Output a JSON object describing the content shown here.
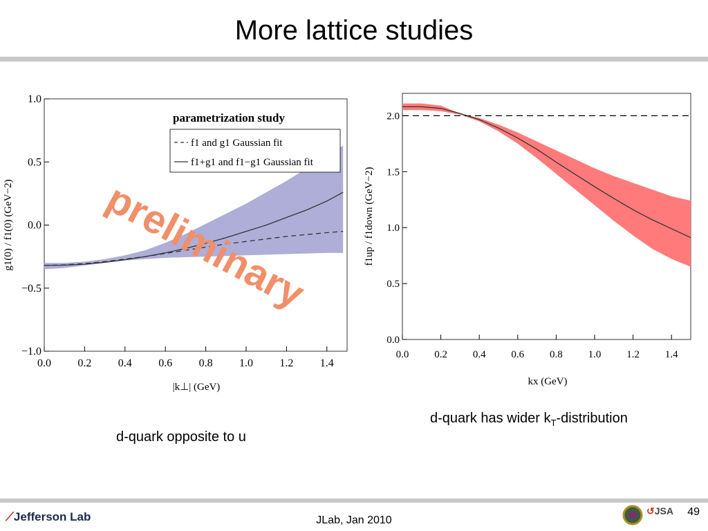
{
  "slide": {
    "title": "More lattice studies",
    "caption_left": "d-quark opposite to u",
    "caption_right_pre": "d-quark has wider k",
    "caption_right_sub": "T",
    "caption_right_post": "-distribution",
    "footer": "JLab, Jan 2010",
    "page_number": "49",
    "logo_text": "Jefferson Lab",
    "logo_right_text": "JSA"
  },
  "chart_data": [
    {
      "type": "line",
      "ylabel": "g1(0) / f1(0)   (GeV−2)",
      "xlabel": "|k⊥| (GeV)",
      "xlim": [
        0.0,
        1.5
      ],
      "ylim": [
        -1.0,
        1.0
      ],
      "x_ticks": [
        "0.0",
        "0.2",
        "0.4",
        "0.6",
        "0.8",
        "1.0",
        "1.2",
        "1.4"
      ],
      "y_ticks": [
        "−1.0",
        "−0.5",
        "0.0",
        "0.5",
        "1.0"
      ],
      "legend_title": "parametrization study",
      "legend_position": "top-right",
      "watermark": "preliminary",
      "band_color": "#aeaed8",
      "x": [
        0.0,
        0.1,
        0.2,
        0.3,
        0.4,
        0.5,
        0.6,
        0.7,
        0.8,
        0.9,
        1.0,
        1.1,
        1.2,
        1.3,
        1.4,
        1.48
      ],
      "band_lower": [
        -0.35,
        -0.34,
        -0.32,
        -0.3,
        -0.28,
        -0.27,
        -0.26,
        -0.255,
        -0.25,
        -0.245,
        -0.24,
        -0.235,
        -0.23,
        -0.225,
        -0.22,
        -0.22
      ],
      "band_upper": [
        -0.3,
        -0.3,
        -0.29,
        -0.27,
        -0.24,
        -0.2,
        -0.14,
        -0.07,
        0.01,
        0.09,
        0.17,
        0.26,
        0.35,
        0.45,
        0.55,
        0.63
      ],
      "series": [
        {
          "name": "f1 and g1 Gaussian fit",
          "style": "dashed",
          "values": [
            -0.32,
            -0.315,
            -0.305,
            -0.29,
            -0.27,
            -0.25,
            -0.225,
            -0.2,
            -0.175,
            -0.15,
            -0.13,
            -0.11,
            -0.09,
            -0.075,
            -0.06,
            -0.05
          ]
        },
        {
          "name": "f1+g1 and f1−g1 Gaussian fit",
          "style": "solid",
          "values": [
            -0.32,
            -0.318,
            -0.31,
            -0.295,
            -0.275,
            -0.25,
            -0.22,
            -0.185,
            -0.145,
            -0.1,
            -0.05,
            0.0,
            0.06,
            0.12,
            0.19,
            0.26
          ]
        }
      ]
    },
    {
      "type": "line",
      "ylabel": "f1up / f1down   (GeV−2)",
      "xlabel": "kx (GeV)",
      "xlim": [
        0.0,
        1.5
      ],
      "ylim": [
        0.0,
        2.2
      ],
      "x_ticks": [
        "0.0",
        "0.2",
        "0.4",
        "0.6",
        "0.8",
        "1.0",
        "1.2",
        "1.4"
      ],
      "y_ticks": [
        "0.0",
        "0.5",
        "1.0",
        "1.5",
        "2.0"
      ],
      "reference_line": 2.0,
      "band_color": "#ff7b7b",
      "x": [
        0.0,
        0.1,
        0.2,
        0.3,
        0.4,
        0.5,
        0.6,
        0.7,
        0.8,
        0.9,
        1.0,
        1.1,
        1.2,
        1.3,
        1.4,
        1.5
      ],
      "band_lower": [
        2.05,
        2.05,
        2.04,
        2.01,
        1.95,
        1.86,
        1.75,
        1.62,
        1.48,
        1.34,
        1.2,
        1.06,
        0.93,
        0.81,
        0.72,
        0.65
      ],
      "band_upper": [
        2.11,
        2.11,
        2.09,
        2.02,
        1.98,
        1.92,
        1.85,
        1.77,
        1.69,
        1.61,
        1.53,
        1.46,
        1.4,
        1.34,
        1.28,
        1.24
      ],
      "series": [
        {
          "style": "solid",
          "values": [
            2.08,
            2.08,
            2.065,
            2.02,
            1.965,
            1.89,
            1.8,
            1.7,
            1.585,
            1.475,
            1.365,
            1.26,
            1.16,
            1.07,
            0.99,
            0.91
          ]
        }
      ]
    }
  ]
}
